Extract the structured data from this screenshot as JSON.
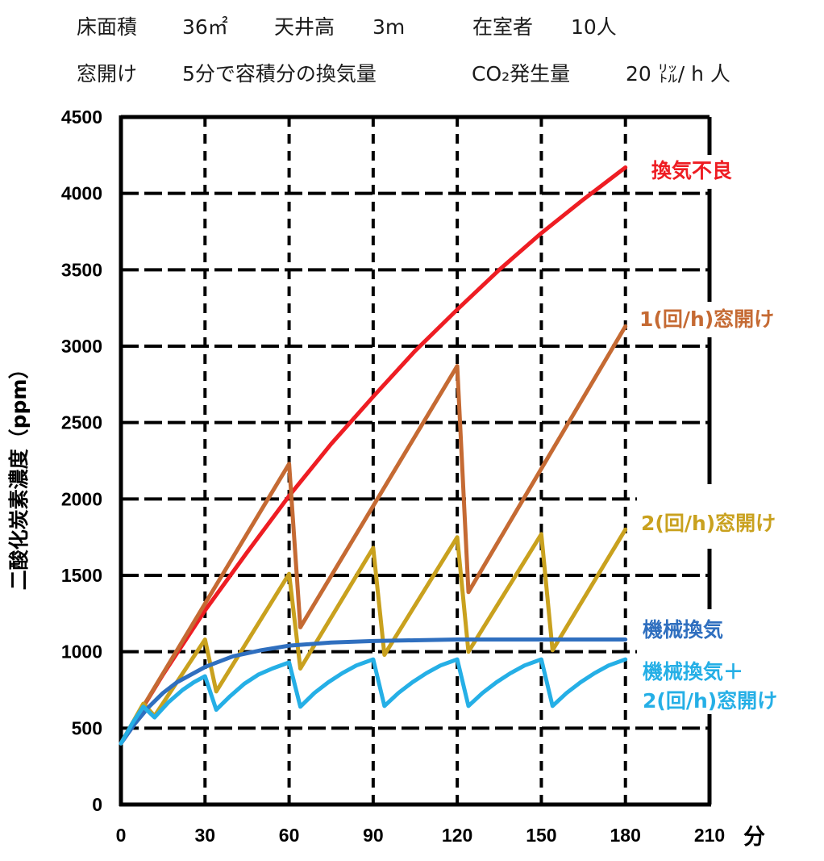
{
  "header": {
    "floor_area_label": "床面積",
    "floor_area_value": "36㎡",
    "ceiling_label": "天井高",
    "ceiling_value": "3m",
    "occupants_label": "在室者",
    "occupants_value": "10人",
    "window_label": "窓開け",
    "window_value": "5分で容積分の換気量",
    "co2_label": "CO₂発生量",
    "co2_value": "20 ㍑/ h 人"
  },
  "chart_data": {
    "type": "line",
    "xlabel": "分",
    "ylabel": "二酸化炭素濃度（ppm）",
    "xlim": [
      0,
      210
    ],
    "ylim": [
      0,
      4500
    ],
    "x_ticks": [
      0,
      30,
      60,
      90,
      120,
      150,
      180,
      210
    ],
    "y_ticks": [
      0,
      500,
      1000,
      1500,
      2000,
      2500,
      3000,
      3500,
      4000,
      4500
    ],
    "grid": true,
    "legend_placement": "right",
    "series": [
      {
        "name": "換気不良",
        "color": "#ee1d23",
        "x": [
          0,
          15,
          30,
          45,
          60,
          75,
          90,
          105,
          120,
          135,
          150,
          165,
          180
        ],
        "y": [
          400,
          850,
          1270,
          1650,
          2020,
          2360,
          2670,
          2970,
          3240,
          3500,
          3740,
          3960,
          4170
        ]
      },
      {
        "name": "1(回/h)窓開け",
        "color": "#c56a33",
        "x": [
          0,
          60,
          64,
          120,
          124,
          180
        ],
        "y": [
          400,
          2230,
          1160,
          2870,
          1390,
          3130
        ]
      },
      {
        "name": "2(回/h)窓開け",
        "color": "#c9a11e",
        "x": [
          0,
          8,
          12,
          30,
          34,
          60,
          64,
          90,
          94,
          120,
          124,
          150,
          154,
          180
        ],
        "y": [
          400,
          660,
          580,
          1080,
          740,
          1510,
          890,
          1680,
          980,
          1750,
          1000,
          1770,
          1010,
          1800
        ]
      },
      {
        "name": "機械換気",
        "color": "#2f6fbf",
        "x": [
          0,
          5,
          10,
          15,
          20,
          30,
          40,
          50,
          60,
          75,
          90,
          120,
          150,
          180
        ],
        "y": [
          400,
          530,
          640,
          730,
          800,
          900,
          970,
          1010,
          1040,
          1060,
          1070,
          1080,
          1080,
          1080
        ]
      },
      {
        "name": "機械換気＋2(回/h)窓開け",
        "color": "#25afe6",
        "x": [
          0,
          4,
          8,
          12,
          17,
          22,
          26,
          30,
          34,
          39,
          44,
          49,
          54,
          60,
          64,
          69,
          74,
          79,
          84,
          90,
          94,
          99,
          104,
          109,
          114,
          120,
          124,
          129,
          134,
          139,
          144,
          150,
          154,
          159,
          164,
          169,
          174,
          180
        ],
        "y": [
          400,
          530,
          640,
          570,
          670,
          750,
          800,
          840,
          620,
          710,
          790,
          850,
          890,
          930,
          640,
          730,
          800,
          860,
          910,
          950,
          645,
          730,
          800,
          860,
          910,
          950,
          645,
          730,
          800,
          860,
          910,
          950,
          645,
          730,
          800,
          860,
          910,
          950
        ]
      }
    ]
  }
}
